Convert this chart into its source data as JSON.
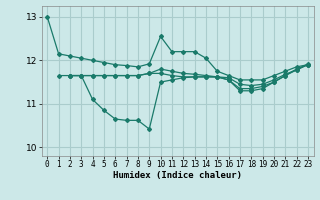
{
  "title": "",
  "xlabel": "Humidex (Indice chaleur)",
  "ylabel": "",
  "bg_color": "#cce8e8",
  "grid_color": "#aacccc",
  "line_color": "#1a7a6a",
  "xlim": [
    -0.5,
    23.5
  ],
  "ylim": [
    9.8,
    13.25
  ],
  "yticks": [
    10,
    11,
    12,
    13
  ],
  "xticks": [
    0,
    1,
    2,
    3,
    4,
    5,
    6,
    7,
    8,
    9,
    10,
    11,
    12,
    13,
    14,
    15,
    16,
    17,
    18,
    19,
    20,
    21,
    22,
    23
  ],
  "series": [
    {
      "x": [
        0,
        1,
        2,
        3,
        4,
        5,
        6,
        7,
        8,
        9,
        10,
        11,
        12,
        13,
        14,
        15,
        16,
        17,
        18,
        19,
        20,
        21,
        22,
        23
      ],
      "y": [
        13.0,
        12.15,
        12.1,
        12.05,
        12.0,
        11.95,
        11.9,
        11.88,
        11.85,
        11.92,
        12.55,
        12.2,
        12.2,
        12.2,
        12.05,
        11.75,
        11.65,
        11.55,
        11.55,
        11.55,
        11.65,
        11.75,
        11.85,
        11.9
      ]
    },
    {
      "x": [
        1,
        2,
        3,
        4,
        5,
        6,
        7,
        8,
        9,
        10,
        11,
        12,
        13,
        14,
        15,
        16,
        17,
        18,
        19,
        20,
        21,
        22,
        23
      ],
      "y": [
        11.65,
        11.65,
        11.65,
        11.1,
        10.85,
        10.65,
        10.62,
        10.62,
        10.42,
        11.5,
        11.55,
        11.6,
        11.62,
        11.62,
        11.62,
        11.55,
        11.3,
        11.3,
        11.35,
        11.5,
        11.65,
        11.8,
        11.9
      ]
    },
    {
      "x": [
        2,
        3,
        4,
        5,
        6,
        7,
        8,
        9,
        10,
        11,
        12,
        13,
        14,
        15,
        16,
        17,
        18,
        19,
        20,
        21,
        22,
        23
      ],
      "y": [
        11.65,
        11.65,
        11.65,
        11.65,
        11.65,
        11.65,
        11.65,
        11.7,
        11.7,
        11.65,
        11.62,
        11.62,
        11.62,
        11.62,
        11.55,
        11.35,
        11.35,
        11.4,
        11.5,
        11.65,
        11.78,
        11.9
      ]
    },
    {
      "x": [
        2,
        3,
        4,
        5,
        6,
        7,
        8,
        9,
        10,
        11,
        12,
        13,
        14,
        15,
        16,
        17,
        18,
        19,
        20,
        21,
        22,
        23
      ],
      "y": [
        11.65,
        11.65,
        11.65,
        11.65,
        11.65,
        11.65,
        11.65,
        11.7,
        11.8,
        11.75,
        11.7,
        11.68,
        11.65,
        11.62,
        11.6,
        11.45,
        11.42,
        11.45,
        11.55,
        11.68,
        11.78,
        11.92
      ]
    }
  ]
}
